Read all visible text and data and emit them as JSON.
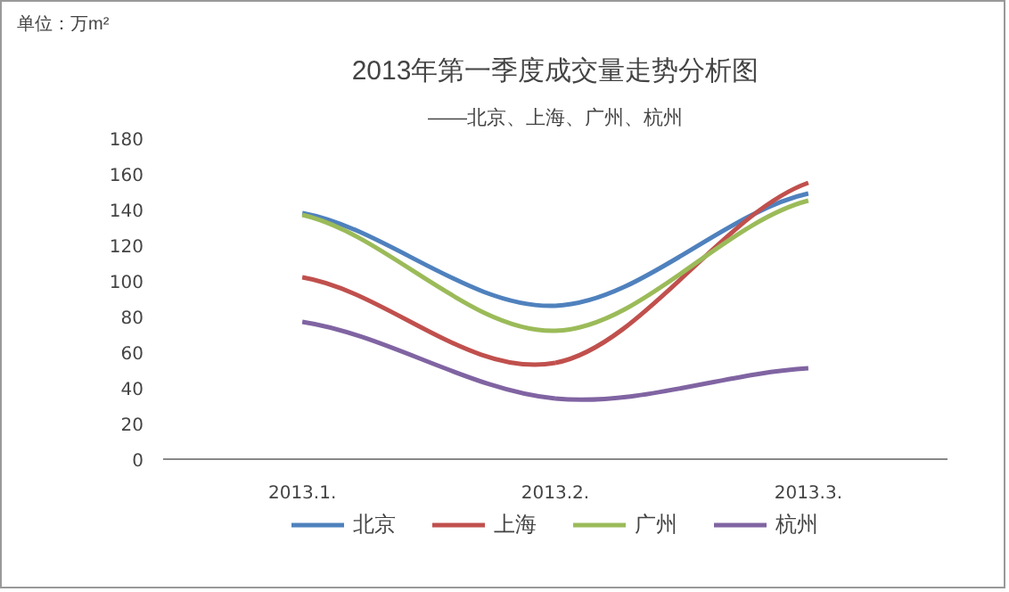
{
  "chart_data": {
    "type": "line",
    "title": "2013年第一季度成交量走势分析图",
    "subtitle": "——北京、上海、广州、杭州",
    "annotations": [
      "单位：万m²"
    ],
    "categories": [
      "2013.1.",
      "2013.2.",
      "2013.3."
    ],
    "series": [
      {
        "name": "北京",
        "color": "#4f81bd",
        "values": [
          138,
          86,
          149
        ]
      },
      {
        "name": "上海",
        "color": "#c0504d",
        "values": [
          102,
          54,
          155
        ]
      },
      {
        "name": "广州",
        "color": "#9bbb59",
        "values": [
          137,
          72,
          145
        ]
      },
      {
        "name": "杭州",
        "color": "#8064a2",
        "values": [
          77,
          34,
          51
        ]
      }
    ],
    "ylim": [
      0,
      180
    ],
    "yticks": [
      0,
      20,
      40,
      60,
      80,
      100,
      120,
      140,
      160,
      180
    ],
    "grid": false,
    "legend": "bottom",
    "marker": "none",
    "line_style": "solid"
  }
}
